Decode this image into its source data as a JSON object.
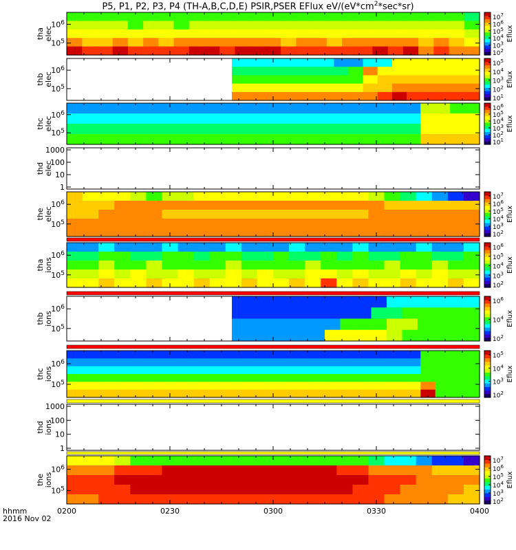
{
  "title": "P5, P1, P2, P3, P4 (TH-A,B,C,D,E) PSIR,PSER EFlux eV/(eV*cm^2*sec*sr)",
  "title_parts": {
    "main": "P5, P1, P2, P3, P4 (TH-A,B,C,D,E) PSIR,PSER EFlux eV/(eV*cm",
    "sup": "2",
    "tail": "*sec*sr)"
  },
  "footer": {
    "time_label": "hhmm",
    "date_label": "2016 Nov 02"
  },
  "colors": {
    "colormap": [
      "#1a0066",
      "#3300cc",
      "#0033ff",
      "#0099ff",
      "#00ffff",
      "#00ff66",
      "#33ff00",
      "#ccff00",
      "#ffff00",
      "#ffcc00",
      "#ff8800",
      "#ff3300",
      "#cc0000"
    ],
    "axis": "#000000",
    "background": "#ffffff",
    "overflow_red": "#ff0000",
    "overflow_yellow": "#ffff00"
  },
  "chart_data": [
    {
      "type": "heatmap",
      "ylabel": "tha elec",
      "y_ticks": [
        "10^5",
        "10^6"
      ],
      "y_range": [
        0,
        1
      ],
      "y_scale": "log",
      "colorbar": {
        "label": "Eflux",
        "ticks": [
          "10^2",
          "10^3",
          "10^4",
          "10^5",
          "10^6",
          "10^7"
        ]
      },
      "data_start": 0.0,
      "grid": [
        [
          6,
          6,
          6,
          6,
          6,
          6,
          6,
          6,
          6,
          6,
          6,
          6,
          6,
          6,
          6,
          6,
          6,
          6,
          6,
          6,
          6,
          6,
          6,
          6,
          6,
          6,
          5
        ],
        [
          7,
          7,
          7,
          7,
          6,
          7,
          7,
          6,
          7,
          7,
          7,
          7,
          7,
          7,
          7,
          7,
          7,
          7,
          7,
          7,
          7,
          7,
          7,
          7,
          7,
          7,
          6
        ],
        [
          8,
          8,
          8,
          8,
          8,
          8,
          8,
          8,
          8,
          8,
          8,
          8,
          8,
          8,
          8,
          8,
          8,
          8,
          8,
          8,
          8,
          8,
          8,
          8,
          8,
          8,
          7
        ],
        [
          10,
          9,
          9,
          10,
          9,
          10,
          9,
          10,
          10,
          10,
          10,
          10,
          10,
          10,
          9,
          10,
          10,
          9,
          10,
          10,
          10,
          10,
          10,
          9,
          10,
          9,
          8
        ],
        [
          12,
          11,
          11,
          12,
          11,
          11,
          11,
          11,
          12,
          12,
          11,
          12,
          12,
          12,
          11,
          11,
          11,
          11,
          11,
          11,
          12,
          11,
          12,
          10,
          11,
          10,
          10
        ]
      ]
    },
    {
      "type": "heatmap",
      "ylabel": "thb elec",
      "y_ticks": [
        "10^5",
        "10^6"
      ],
      "y_range": [
        0,
        1
      ],
      "y_scale": "log",
      "colorbar": {
        "label": "Eflux",
        "ticks": [
          "10^1",
          "10^2",
          "10^3",
          "10^4",
          "10^5"
        ]
      },
      "data_start": 0.4,
      "grid": [
        [
          4,
          4,
          4,
          4,
          4,
          4,
          4,
          3,
          3,
          4,
          4,
          8,
          8,
          8,
          8,
          8,
          8
        ],
        [
          5,
          5,
          5,
          5,
          5,
          5,
          5,
          5,
          6,
          10,
          8,
          8,
          8,
          8,
          8,
          8,
          8
        ],
        [
          6,
          6,
          6,
          6,
          6,
          6,
          6,
          6,
          6,
          8,
          9,
          9,
          9,
          9,
          9,
          9,
          9
        ],
        [
          8,
          8,
          8,
          8,
          8,
          8,
          8,
          8,
          8,
          9,
          9,
          10,
          10,
          10,
          10,
          10,
          10
        ],
        [
          10,
          10,
          10,
          10,
          10,
          10,
          10,
          10,
          10,
          10,
          11,
          12,
          11,
          11,
          11,
          11,
          11
        ]
      ]
    },
    {
      "type": "heatmap",
      "ylabel": "thc elec",
      "y_ticks": [
        "10^5",
        "10^6"
      ],
      "y_range": [
        0,
        1
      ],
      "y_scale": "log",
      "colorbar": {
        "label": "Eflux",
        "ticks": [
          "10^1",
          "10^2",
          "10^3",
          "10^4",
          "10^5",
          "10^6"
        ]
      },
      "data_start": 0.0,
      "grid": [
        [
          3,
          3,
          3,
          3,
          3,
          3,
          3,
          3,
          3,
          3,
          3,
          3,
          3,
          3,
          3,
          3,
          3,
          3,
          3,
          3,
          3,
          3,
          3,
          3,
          7,
          7,
          6,
          6
        ],
        [
          4,
          4,
          4,
          4,
          4,
          4,
          4,
          4,
          4,
          4,
          4,
          4,
          4,
          4,
          4,
          4,
          4,
          4,
          4,
          4,
          4,
          4,
          4,
          4,
          8,
          8,
          8,
          8
        ],
        [
          5,
          5,
          5,
          5,
          5,
          5,
          5,
          5,
          5,
          5,
          5,
          5,
          5,
          5,
          5,
          5,
          5,
          5,
          5,
          5,
          5,
          5,
          5,
          5,
          8,
          8,
          8,
          8
        ],
        [
          6,
          6,
          6,
          6,
          6,
          6,
          6,
          6,
          6,
          6,
          6,
          6,
          6,
          6,
          6,
          6,
          6,
          6,
          6,
          6,
          6,
          6,
          6,
          6,
          9,
          9,
          9,
          9
        ]
      ]
    },
    {
      "type": "heatmap",
      "ylabel": "thd elec",
      "y_ticks": [
        "1",
        "10",
        "100",
        "1000"
      ],
      "y_range": [
        1,
        1000
      ],
      "y_scale": "log",
      "colorbar": null,
      "grid": []
    },
    {
      "type": "heatmap",
      "ylabel": "the elec",
      "y_ticks": [
        "10^5",
        "10^6"
      ],
      "y_range": [
        0,
        1
      ],
      "y_scale": "log",
      "colorbar": {
        "label": "Eflux",
        "ticks": [
          "10^2",
          "10^3",
          "10^4",
          "10^5",
          "10^6",
          "10^7"
        ]
      },
      "data_start": 0.0,
      "grid": [
        [
          9,
          8,
          8,
          8,
          7,
          6,
          7,
          7,
          8,
          8,
          8,
          8,
          8,
          8,
          8,
          8,
          8,
          8,
          8,
          7,
          6,
          5,
          4,
          3,
          2,
          1
        ],
        [
          9,
          9,
          9,
          10,
          10,
          10,
          10,
          10,
          10,
          10,
          10,
          10,
          10,
          10,
          10,
          10,
          10,
          10,
          10,
          10,
          9,
          9,
          9,
          9,
          9,
          9
        ],
        [
          9,
          9,
          10,
          10,
          10,
          10,
          9,
          9,
          9,
          9,
          9,
          9,
          9,
          9,
          9,
          9,
          9,
          9,
          9,
          10,
          10,
          10,
          10,
          10,
          10,
          10
        ],
        [
          10,
          10,
          10,
          10,
          10,
          10,
          10,
          10,
          10,
          10,
          10,
          10,
          10,
          10,
          10,
          10,
          10,
          10,
          10,
          10,
          10,
          10,
          10,
          10,
          10,
          10
        ],
        [
          10,
          10,
          10,
          10,
          10,
          10,
          10,
          10,
          10,
          10,
          10,
          10,
          10,
          10,
          10,
          10,
          10,
          10,
          10,
          10,
          10,
          10,
          10,
          10,
          10,
          10
        ]
      ]
    },
    {
      "type": "heatmap",
      "ylabel": "tha ions",
      "y_ticks": [
        "10^5",
        "10^6"
      ],
      "y_range": [
        0,
        1
      ],
      "y_scale": "log",
      "colorbar": {
        "label": "Eflux",
        "ticks": [
          "10^2",
          "10^3",
          "10^4",
          "10^5",
          "10^6"
        ]
      },
      "data_start": 0.0,
      "grid": [
        [
          3,
          3,
          4,
          3,
          3,
          3,
          4,
          3,
          3,
          3,
          4,
          3,
          3,
          3,
          4,
          3,
          3,
          3,
          4,
          3,
          3,
          3,
          4,
          3,
          3,
          4
        ],
        [
          5,
          5,
          6,
          6,
          5,
          5,
          6,
          6,
          5,
          6,
          6,
          5,
          5,
          6,
          5,
          5,
          6,
          5,
          6,
          5,
          5,
          6,
          6,
          5,
          5,
          6
        ],
        [
          6,
          6,
          7,
          6,
          6,
          7,
          6,
          6,
          6,
          6,
          7,
          6,
          6,
          6,
          6,
          7,
          6,
          6,
          6,
          6,
          7,
          6,
          6,
          7,
          6,
          6
        ],
        [
          7,
          7,
          8,
          7,
          8,
          7,
          7,
          8,
          7,
          7,
          8,
          7,
          8,
          7,
          7,
          8,
          8,
          7,
          8,
          7,
          7,
          8,
          7,
          8,
          7,
          7
        ],
        [
          8,
          8,
          9,
          8,
          8,
          9,
          8,
          8,
          9,
          8,
          8,
          9,
          8,
          8,
          9,
          8,
          11,
          8,
          9,
          8,
          8,
          9,
          8,
          8,
          9,
          8
        ]
      ]
    },
    {
      "type": "heatmap",
      "ylabel": "thb ions",
      "y_ticks": [
        "10^5",
        "10^6"
      ],
      "y_range": [
        0,
        1
      ],
      "y_scale": "log",
      "colorbar": {
        "label": "Eflux",
        "ticks": [
          "10^2",
          "10^4",
          "10^6"
        ]
      },
      "data_start": 0.4,
      "grid": [
        [
          2,
          2,
          2,
          2,
          2,
          2,
          2,
          2,
          2,
          2,
          4,
          4,
          4,
          4,
          4,
          4
        ],
        [
          2,
          2,
          2,
          2,
          2,
          2,
          2,
          2,
          2,
          5,
          5,
          6,
          6,
          6,
          6,
          6
        ],
        [
          3,
          3,
          3,
          3,
          3,
          3,
          3,
          6,
          6,
          6,
          7,
          7,
          6,
          6,
          6,
          6
        ],
        [
          3,
          3,
          3,
          3,
          3,
          3,
          8,
          8,
          8,
          8,
          7,
          6,
          6,
          6,
          6,
          6
        ]
      ]
    },
    {
      "type": "heatmap",
      "ylabel": "thc ions",
      "y_ticks": [
        "10^5",
        "10^6"
      ],
      "y_range": [
        0,
        1
      ],
      "y_scale": "log",
      "colorbar": {
        "label": "Eflux",
        "ticks": [
          "10^2",
          "10^3",
          "10^4",
          "10^5"
        ]
      },
      "data_start": 0.0,
      "grid": [
        [
          2,
          2,
          2,
          2,
          2,
          2,
          2,
          2,
          2,
          2,
          2,
          2,
          2,
          2,
          2,
          2,
          2,
          2,
          2,
          2,
          2,
          2,
          2,
          2,
          6,
          6,
          6,
          6
        ],
        [
          3,
          3,
          3,
          3,
          3,
          3,
          3,
          3,
          3,
          3,
          3,
          3,
          3,
          3,
          3,
          3,
          3,
          3,
          3,
          3,
          3,
          3,
          3,
          3,
          6,
          6,
          6,
          6
        ],
        [
          4,
          4,
          4,
          4,
          4,
          4,
          4,
          4,
          4,
          4,
          4,
          4,
          4,
          4,
          4,
          4,
          4,
          4,
          4,
          4,
          4,
          4,
          4,
          4,
          6,
          6,
          6,
          6
        ],
        [
          6,
          6,
          6,
          6,
          6,
          6,
          6,
          6,
          6,
          6,
          6,
          6,
          6,
          6,
          6,
          6,
          6,
          6,
          6,
          6,
          6,
          6,
          6,
          6,
          6,
          6,
          6,
          6
        ],
        [
          8,
          8,
          8,
          8,
          8,
          8,
          8,
          8,
          8,
          8,
          8,
          8,
          8,
          8,
          8,
          8,
          8,
          8,
          8,
          8,
          8,
          8,
          8,
          8,
          10,
          6,
          6,
          6
        ],
        [
          9,
          9,
          9,
          9,
          9,
          9,
          9,
          9,
          9,
          9,
          9,
          9,
          9,
          9,
          9,
          9,
          9,
          9,
          9,
          9,
          9,
          9,
          9,
          9,
          12,
          6,
          6,
          6
        ]
      ]
    },
    {
      "type": "heatmap",
      "ylabel": "thd ions",
      "y_ticks": [
        "1",
        "10",
        "100",
        "1000"
      ],
      "y_range": [
        1,
        1000
      ],
      "y_scale": "log",
      "colorbar": null,
      "grid": []
    },
    {
      "type": "heatmap",
      "ylabel": "the ions",
      "y_ticks": [
        "10^5",
        "10^6"
      ],
      "y_range": [
        0,
        1
      ],
      "y_scale": "log",
      "colorbar": {
        "label": "Eflux",
        "ticks": [
          "10^2",
          "10^3",
          "10^4",
          "10^5",
          "10^6",
          "10^7"
        ]
      },
      "data_start": 0.0,
      "grid": [
        [
          8,
          8,
          8,
          7,
          6,
          6,
          6,
          6,
          6,
          6,
          6,
          6,
          6,
          6,
          6,
          6,
          6,
          6,
          6,
          5,
          4,
          4,
          3,
          2,
          2,
          1
        ],
        [
          10,
          10,
          10,
          11,
          11,
          11,
          12,
          12,
          12,
          12,
          12,
          12,
          12,
          12,
          12,
          12,
          12,
          11,
          11,
          10,
          10,
          10,
          10,
          9,
          9,
          9
        ],
        [
          11,
          11,
          11,
          12,
          12,
          12,
          12,
          12,
          12,
          12,
          12,
          12,
          12,
          12,
          12,
          12,
          12,
          12,
          12,
          11,
          11,
          11,
          10,
          10,
          10,
          10
        ],
        [
          11,
          11,
          11,
          11,
          12,
          12,
          12,
          12,
          12,
          12,
          12,
          12,
          12,
          12,
          12,
          12,
          12,
          12,
          11,
          11,
          11,
          10,
          10,
          10,
          10,
          9
        ],
        [
          10,
          10,
          11,
          11,
          11,
          11,
          11,
          11,
          11,
          11,
          11,
          11,
          11,
          11,
          11,
          11,
          11,
          11,
          11,
          11,
          10,
          10,
          10,
          10,
          9,
          9
        ]
      ]
    }
  ],
  "x_axis": {
    "ticks": [
      "0200",
      "0230",
      "0300",
      "0330",
      "0400"
    ],
    "range": [
      "02:00",
      "04:00"
    ]
  }
}
